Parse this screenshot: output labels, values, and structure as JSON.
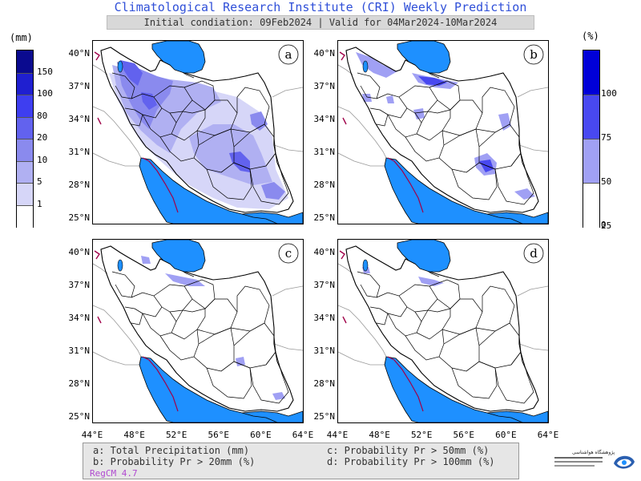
{
  "header": {
    "title": "Climatological Research Institute (CRI) Weekly Prediction",
    "subtitle": "Initial condiation: 09Feb2024 | Valid for 04Mar2024-10Mar2024"
  },
  "panels": [
    {
      "id": "a",
      "label": "a"
    },
    {
      "id": "b",
      "label": "b"
    },
    {
      "id": "c",
      "label": "c"
    },
    {
      "id": "d",
      "label": "d"
    }
  ],
  "axes": {
    "lat_labels": [
      "40°N",
      "37°N",
      "34°N",
      "31°N",
      "28°N",
      "25°N"
    ],
    "lon_labels": [
      "44°E",
      "48°E",
      "52°E",
      "56°E",
      "60°E",
      "64°E"
    ]
  },
  "legend_left": {
    "unit": "(mm)",
    "values": [
      "150",
      "100",
      "80",
      "20",
      "10",
      "5",
      "1"
    ],
    "colors": [
      "#0a0a8f",
      "#1f1fd0",
      "#3e3ef0",
      "#6262ee",
      "#8a8aee",
      "#b0b0f2",
      "#d6d6f8",
      "#ffffff"
    ]
  },
  "legend_right": {
    "unit": "(%)",
    "values": [
      "100",
      "75",
      "50",
      "25",
      "0"
    ],
    "colors": [
      "#0000d8",
      "#4848f0",
      "#a0a0f4",
      "#ffffff"
    ]
  },
  "caption": {
    "a": "a: Total Precipitation (mm)",
    "b": "b: Probability Pr > 20mm (%)",
    "c": "c: Probability Pr > 50mm (%)",
    "d": "d: Probability Pr > 100mm (%)",
    "model": "RegCM 4.7"
  },
  "colors": {
    "sea": "#1e90ff",
    "title": "#2f4fd8"
  }
}
